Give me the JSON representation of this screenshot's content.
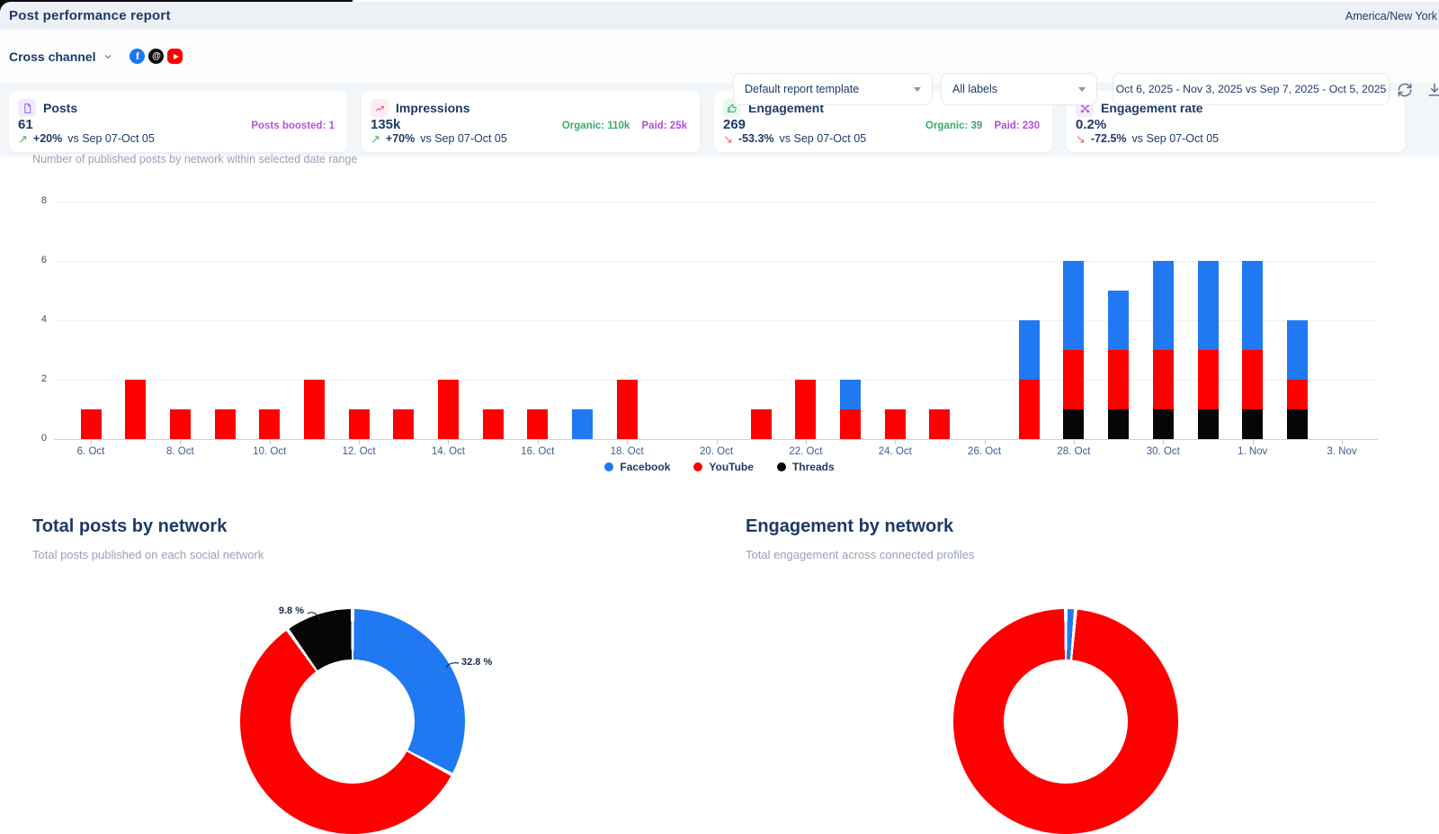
{
  "header": {
    "title": "Post performance report",
    "timezone": "America/New York"
  },
  "filter_bar": {
    "channel_label": "Cross channel",
    "networks": [
      "Facebook",
      "Threads",
      "YouTube"
    ],
    "template_select": "Default report template",
    "labels_select": "All labels",
    "date_range": "Oct 6, 2025 - Nov 3, 2025 vs Sep 7, 2025 - Oct 5, 2025"
  },
  "kpis": [
    {
      "title": "Posts",
      "value": "61",
      "extra": "Posts boosted: 1",
      "arrow": "↗",
      "delta": "+20%",
      "vs": "vs Sep 07-Oct 05"
    },
    {
      "title": "Impressions",
      "value": "135k",
      "organic": "Organic: 110k",
      "paid": "Paid: 25k",
      "arrow": "↗",
      "delta": "+70%",
      "vs": "vs Sep 07-Oct 05"
    },
    {
      "title": "Engagement",
      "value": "269",
      "organic": "Organic: 39",
      "paid": "Paid: 230",
      "arrow": "↘",
      "delta": "-53.3%",
      "vs": "vs Sep 07-Oct 05"
    },
    {
      "title": "Engagement rate",
      "value": "0.2%",
      "arrow": "↘",
      "delta": "-72.5%",
      "vs": "vs Sep 07-Oct 05"
    }
  ],
  "chart_data": [
    {
      "id": "published-posts-by-network",
      "type": "bar",
      "stacked": true,
      "subtitle": "Number of published posts by network within selected date range",
      "categories": [
        "Oct 6",
        "Oct 7",
        "Oct 8",
        "Oct 9",
        "Oct 10",
        "Oct 11",
        "Oct 12",
        "Oct 13",
        "Oct 14",
        "Oct 15",
        "Oct 16",
        "Oct 17",
        "Oct 18",
        "Oct 19",
        "Oct 20",
        "Oct 21",
        "Oct 22",
        "Oct 23",
        "Oct 24",
        "Oct 25",
        "Oct 26",
        "Oct 27",
        "Oct 28",
        "Oct 29",
        "Oct 30",
        "Oct 31",
        "Nov 1",
        "Nov 2",
        "Nov 3"
      ],
      "x_tick_labels": [
        "6. Oct",
        "8. Oct",
        "10. Oct",
        "12. Oct",
        "14. Oct",
        "16. Oct",
        "18. Oct",
        "20. Oct",
        "22. Oct",
        "24. Oct",
        "26. Oct",
        "28. Oct",
        "30. Oct",
        "1. Nov",
        "3. Nov"
      ],
      "x_tick_positions": [
        0,
        2,
        4,
        6,
        8,
        10,
        12,
        14,
        16,
        18,
        20,
        22,
        24,
        26,
        28
      ],
      "series": [
        {
          "name": "Facebook",
          "color": "#2079f2",
          "values": [
            0,
            0,
            0,
            0,
            0,
            0,
            0,
            0,
            0,
            0,
            0,
            1,
            0,
            0,
            0,
            0,
            0,
            1,
            0,
            0,
            0,
            2,
            3,
            2,
            3,
            3,
            3,
            2,
            0
          ]
        },
        {
          "name": "YouTube",
          "color": "#fe0000",
          "values": [
            1,
            2,
            1,
            1,
            1,
            2,
            1,
            1,
            2,
            1,
            1,
            0,
            2,
            0,
            0,
            1,
            2,
            1,
            1,
            1,
            0,
            2,
            2,
            2,
            2,
            2,
            2,
            1,
            0
          ]
        },
        {
          "name": "Threads",
          "color": "#060606",
          "values": [
            0,
            0,
            0,
            0,
            0,
            0,
            0,
            0,
            0,
            0,
            0,
            0,
            0,
            0,
            0,
            0,
            0,
            0,
            0,
            0,
            0,
            0,
            1,
            1,
            1,
            1,
            1,
            1,
            0
          ]
        }
      ],
      "stack_order_bottom_to_top": [
        "Threads",
        "YouTube",
        "Facebook"
      ],
      "ylim": [
        0,
        8
      ],
      "yticks": [
        0,
        2,
        4,
        6,
        8
      ],
      "grid": true,
      "legend_position": "bottom"
    },
    {
      "id": "total-posts-by-network",
      "type": "donut",
      "title": "Total posts by network",
      "subtitle": "Total posts published on each social network",
      "slices": [
        {
          "label": "Facebook",
          "pct": 32.8,
          "color": "#2079f2"
        },
        {
          "label": "YouTube",
          "pct": 57.4,
          "color": "#fe0000"
        },
        {
          "label": "Threads",
          "pct": 9.8,
          "color": "#060606"
        }
      ],
      "visible_labels": {
        "threads": "9.8 %",
        "facebook": "32.8 %"
      }
    },
    {
      "id": "engagement-by-network",
      "type": "donut",
      "title": "Engagement by network",
      "subtitle": "Total engagement across connected profiles",
      "slices": [
        {
          "label": "Facebook",
          "pct": 1.4,
          "color": "#2079f2"
        },
        {
          "label": "YouTube",
          "pct": 98.6,
          "color": "#fe0000"
        }
      ]
    }
  ]
}
